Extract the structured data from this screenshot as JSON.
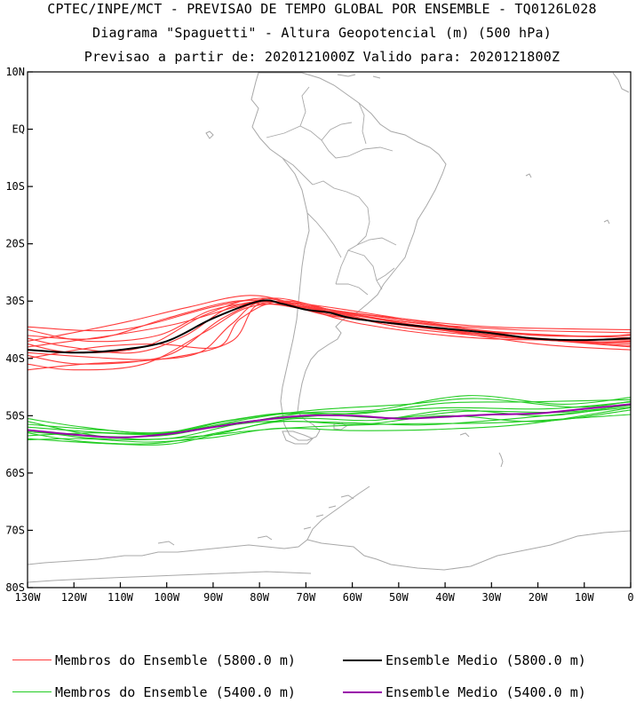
{
  "header": {
    "line1": "CPTEC/INPE/MCT - PREVISAO DE TEMPO GLOBAL POR ENSEMBLE - TQ0126L028",
    "line2": "Diagrama \"Spaguetti\" - Altura Geopotencial (m) (500 hPa)",
    "line3": "Previsao a partir de: 2020121000Z  Valido para: 2020121800Z"
  },
  "map": {
    "lat_range": [
      -80,
      10
    ],
    "lon_range": [
      -130,
      0
    ],
    "y_ticks": [
      {
        "lat": 10,
        "label": "10N"
      },
      {
        "lat": 0,
        "label": "EQ"
      },
      {
        "lat": -10,
        "label": "10S"
      },
      {
        "lat": -20,
        "label": "20S"
      },
      {
        "lat": -30,
        "label": "30S"
      },
      {
        "lat": -40,
        "label": "40S"
      },
      {
        "lat": -50,
        "label": "50S"
      },
      {
        "lat": -60,
        "label": "60S"
      },
      {
        "lat": -70,
        "label": "70S"
      },
      {
        "lat": -80,
        "label": "80S"
      }
    ],
    "x_ticks": [
      {
        "lon": -130,
        "label": "130W"
      },
      {
        "lon": -120,
        "label": "120W"
      },
      {
        "lon": -110,
        "label": "110W"
      },
      {
        "lon": -100,
        "label": "100W"
      },
      {
        "lon": -90,
        "label": "90W"
      },
      {
        "lon": -80,
        "label": "80W"
      },
      {
        "lon": -70,
        "label": "70W"
      },
      {
        "lon": -60,
        "label": "60W"
      },
      {
        "lon": -50,
        "label": "50W"
      },
      {
        "lon": -40,
        "label": "40W"
      },
      {
        "lon": -30,
        "label": "30W"
      },
      {
        "lon": -20,
        "label": "20W"
      },
      {
        "lon": -10,
        "label": "10W"
      },
      {
        "lon": 0,
        "label": "0"
      }
    ],
    "colors": {
      "members_5800": "#ff3b3b",
      "mean_5800": "#000000",
      "members_5400": "#22cc22",
      "mean_5400": "#9900aa",
      "coast": "#a8a8a8"
    }
  },
  "legend": {
    "members_5800": "Membros do Ensemble (5800.0 m)",
    "mean_5800": "Ensemble Medio (5800.0 m)",
    "members_5400": "Membros do Ensemble (5400.0 m)",
    "mean_5400": "Ensemble Medio (5400.0 m)"
  },
  "chart_data": {
    "type": "line",
    "x_unit": "longitude (deg, negative = W)",
    "y_unit": "latitude (deg, negative = S)",
    "mean_5800": [
      [
        -130,
        -38.5
      ],
      [
        -120,
        -39
      ],
      [
        -110,
        -38.5
      ],
      [
        -100,
        -37
      ],
      [
        -90,
        -33
      ],
      [
        -80,
        -30
      ],
      [
        -75,
        -30.5
      ],
      [
        -70,
        -31.5
      ],
      [
        -65,
        -32
      ],
      [
        -60,
        -33
      ],
      [
        -50,
        -34
      ],
      [
        -40,
        -34.8
      ],
      [
        -30,
        -35.6
      ],
      [
        -20,
        -36.6
      ],
      [
        -10,
        -36.8
      ],
      [
        0,
        -36.5
      ]
    ],
    "mean_5400": [
      [
        -130,
        -52.5
      ],
      [
        -120,
        -53.3
      ],
      [
        -110,
        -53.8
      ],
      [
        -100,
        -53.2
      ],
      [
        -90,
        -52
      ],
      [
        -80,
        -50.8
      ],
      [
        -70,
        -50
      ],
      [
        -60,
        -50
      ],
      [
        -50,
        -50.5
      ],
      [
        -40,
        -50.2
      ],
      [
        -30,
        -49.8
      ],
      [
        -20,
        -49.6
      ],
      [
        -10,
        -48.8
      ],
      [
        0,
        -48
      ]
    ],
    "members_5800": [
      [
        [
          -130,
          -34.5
        ],
        [
          -110,
          -35
        ],
        [
          -90,
          -31
        ],
        [
          -80,
          -29.8
        ],
        [
          -70,
          -31
        ],
        [
          -50,
          -33
        ],
        [
          -30,
          -34.5
        ],
        [
          0,
          -35
        ]
      ],
      [
        [
          -130,
          -36
        ],
        [
          -115,
          -36.5
        ],
        [
          -100,
          -33
        ],
        [
          -85,
          -30
        ],
        [
          -72,
          -30.5
        ],
        [
          -50,
          -33.5
        ],
        [
          -25,
          -35
        ],
        [
          0,
          -35.5
        ]
      ],
      [
        [
          -130,
          -37.5
        ],
        [
          -120,
          -39
        ],
        [
          -105,
          -38
        ],
        [
          -92,
          -32.5
        ],
        [
          -80,
          -29.5
        ],
        [
          -68,
          -31.5
        ],
        [
          -45,
          -34
        ],
        [
          -20,
          -36
        ],
        [
          0,
          -36
        ]
      ],
      [
        [
          -130,
          -39.5
        ],
        [
          -118,
          -41
        ],
        [
          -100,
          -39.5
        ],
        [
          -88,
          -33
        ],
        [
          -78,
          -30
        ],
        [
          -65,
          -32.5
        ],
        [
          -40,
          -35
        ],
        [
          -15,
          -37
        ],
        [
          0,
          -37
        ]
      ],
      [
        [
          -130,
          -41
        ],
        [
          -120,
          -42
        ],
        [
          -105,
          -41
        ],
        [
          -92,
          -35.5
        ],
        [
          -82,
          -31
        ],
        [
          -70,
          -31
        ],
        [
          -50,
          -34.5
        ],
        [
          -25,
          -36.5
        ],
        [
          0,
          -37.5
        ]
      ],
      [
        [
          -130,
          -42
        ],
        [
          -118,
          -41
        ],
        [
          -100,
          -40
        ],
        [
          -86,
          -37
        ],
        [
          -80,
          -30.5
        ],
        [
          -67,
          -31.5
        ],
        [
          -45,
          -34.5
        ],
        [
          -20,
          -37.5
        ],
        [
          0,
          -38.5
        ]
      ],
      [
        [
          -130,
          -38
        ],
        [
          -112,
          -36
        ],
        [
          -98,
          -34
        ],
        [
          -85,
          -31
        ],
        [
          -76,
          -29.5
        ],
        [
          -62,
          -32
        ],
        [
          -38,
          -35
        ],
        [
          -10,
          -36.2
        ],
        [
          0,
          -35.8
        ]
      ],
      [
        [
          -130,
          -35
        ],
        [
          -117,
          -37
        ],
        [
          -102,
          -36
        ],
        [
          -90,
          -31.5
        ],
        [
          -78,
          -30.5
        ],
        [
          -60,
          -33
        ],
        [
          -35,
          -35.5
        ],
        [
          -10,
          -37
        ],
        [
          0,
          -37.2
        ]
      ],
      [
        [
          -130,
          -40
        ],
        [
          -115,
          -38
        ],
        [
          -102,
          -37.5
        ],
        [
          -89,
          -38
        ],
        [
          -84,
          -33
        ],
        [
          -74,
          -30
        ],
        [
          -55,
          -33.5
        ],
        [
          -30,
          -36
        ],
        [
          0,
          -37.8
        ]
      ],
      [
        [
          -130,
          -37
        ],
        [
          -120,
          -35.5
        ],
        [
          -108,
          -33.5
        ],
        [
          -95,
          -31
        ],
        [
          -82,
          -29
        ],
        [
          -70,
          -30.8
        ],
        [
          -52,
          -33
        ],
        [
          -28,
          -35.4
        ],
        [
          0,
          -36.4
        ]
      ],
      [
        [
          -130,
          -39
        ],
        [
          -116,
          -39.8
        ],
        [
          -104,
          -40.2
        ],
        [
          -93,
          -39
        ],
        [
          -86,
          -34
        ],
        [
          -78,
          -30
        ],
        [
          -58,
          -34
        ],
        [
          -32,
          -36.5
        ],
        [
          0,
          -36.8
        ]
      ],
      [
        [
          -130,
          -36.5
        ],
        [
          -121,
          -38
        ],
        [
          -107,
          -39
        ],
        [
          -96,
          -36
        ],
        [
          -86,
          -31
        ],
        [
          -74,
          -30.2
        ],
        [
          -48,
          -33.2
        ],
        [
          -22,
          -36.4
        ],
        [
          0,
          -38
        ]
      ]
    ],
    "members_5400": [
      [
        [
          -130,
          -51
        ],
        [
          -115,
          -53.5
        ],
        [
          -100,
          -54
        ],
        [
          -85,
          -51.5
        ],
        [
          -70,
          -49.5
        ],
        [
          -55,
          -49
        ],
        [
          -35,
          -46.5
        ],
        [
          -15,
          -48
        ],
        [
          0,
          -46.8
        ]
      ],
      [
        [
          -130,
          -52
        ],
        [
          -112,
          -53
        ],
        [
          -98,
          -52.8
        ],
        [
          -82,
          -50.5
        ],
        [
          -68,
          -49
        ],
        [
          -48,
          -48
        ],
        [
          -33,
          -47
        ],
        [
          -12,
          -48.5
        ],
        [
          0,
          -47.5
        ]
      ],
      [
        [
          -130,
          -53
        ],
        [
          -118,
          -54.5
        ],
        [
          -102,
          -54.8
        ],
        [
          -86,
          -52.5
        ],
        [
          -72,
          -50.5
        ],
        [
          -55,
          -50.8
        ],
        [
          -38,
          -49
        ],
        [
          -18,
          -50
        ],
        [
          0,
          -48
        ]
      ],
      [
        [
          -130,
          -54
        ],
        [
          -115,
          -54.8
        ],
        [
          -100,
          -55
        ],
        [
          -88,
          -53
        ],
        [
          -75,
          -51
        ],
        [
          -58,
          -51.5
        ],
        [
          -40,
          -50
        ],
        [
          -20,
          -51
        ],
        [
          0,
          -49
        ]
      ],
      [
        [
          -130,
          -50.5
        ],
        [
          -118,
          -52
        ],
        [
          -104,
          -53
        ],
        [
          -90,
          -52
        ],
        [
          -78,
          -51
        ],
        [
          -62,
          -51.2
        ],
        [
          -45,
          -51.6
        ],
        [
          -25,
          -50.5
        ],
        [
          0,
          -48.5
        ]
      ],
      [
        [
          -130,
          -53.5
        ],
        [
          -116,
          -53
        ],
        [
          -102,
          -53.2
        ],
        [
          -88,
          -51
        ],
        [
          -74,
          -49.5
        ],
        [
          -58,
          -49.6
        ],
        [
          -40,
          -47.8
        ],
        [
          -22,
          -47.6
        ],
        [
          0,
          -47.2
        ]
      ],
      [
        [
          -130,
          -52.5
        ],
        [
          -118,
          -53.8
        ],
        [
          -105,
          -54.2
        ],
        [
          -92,
          -53.5
        ],
        [
          -80,
          -52.5
        ],
        [
          -65,
          -51.8
        ],
        [
          -48,
          -51.4
        ],
        [
          -28,
          -51.2
        ],
        [
          0,
          -49.8
        ]
      ],
      [
        [
          -130,
          -51.5
        ],
        [
          -114,
          -52.5
        ],
        [
          -100,
          -53
        ],
        [
          -86,
          -50.8
        ],
        [
          -72,
          -49.6
        ],
        [
          -52,
          -50.4
        ],
        [
          -35,
          -49.2
        ],
        [
          -15,
          -49.4
        ],
        [
          0,
          -48.2
        ]
      ],
      [
        [
          -130,
          -54.2
        ],
        [
          -118,
          -54
        ],
        [
          -104,
          -54.6
        ],
        [
          -90,
          -53.8
        ],
        [
          -76,
          -52.2
        ],
        [
          -60,
          -52.6
        ],
        [
          -42,
          -52.4
        ],
        [
          -22,
          -51.4
        ],
        [
          0,
          -48.6
        ]
      ],
      [
        [
          -130,
          -52.8
        ],
        [
          -115,
          -53.6
        ],
        [
          -100,
          -53.4
        ],
        [
          -85,
          -51.2
        ],
        [
          -70,
          -50.2
        ],
        [
          -54,
          -49.2
        ],
        [
          -38,
          -48.6
        ],
        [
          -18,
          -48.8
        ],
        [
          0,
          -47.6
        ]
      ]
    ]
  }
}
